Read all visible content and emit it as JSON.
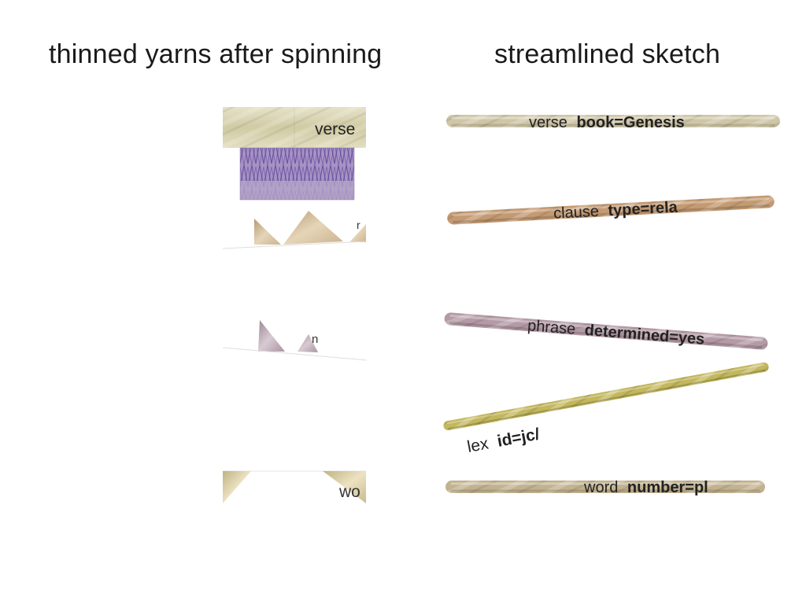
{
  "headings": {
    "left": "thinned yarns after spinning",
    "right": "streamlined sketch"
  },
  "left_panel": {
    "verse_label": "verse",
    "clause_fragment": "r",
    "phrase_fragment": "n",
    "word_fragment": "wo"
  },
  "yarns": [
    {
      "name": "verse",
      "feature": "book=Genesis",
      "color": "#cfc6a7"
    },
    {
      "name": "clause",
      "feature": "type=rela",
      "color": "#c49a72"
    },
    {
      "name": "phrase",
      "feature": "determined=yes",
      "color": "#b49aa5"
    },
    {
      "name": "lex",
      "feature": "id=jc/",
      "color": "#c3b75e"
    },
    {
      "name": "word",
      "feature": "number=pl",
      "color": "#c2b290"
    }
  ]
}
